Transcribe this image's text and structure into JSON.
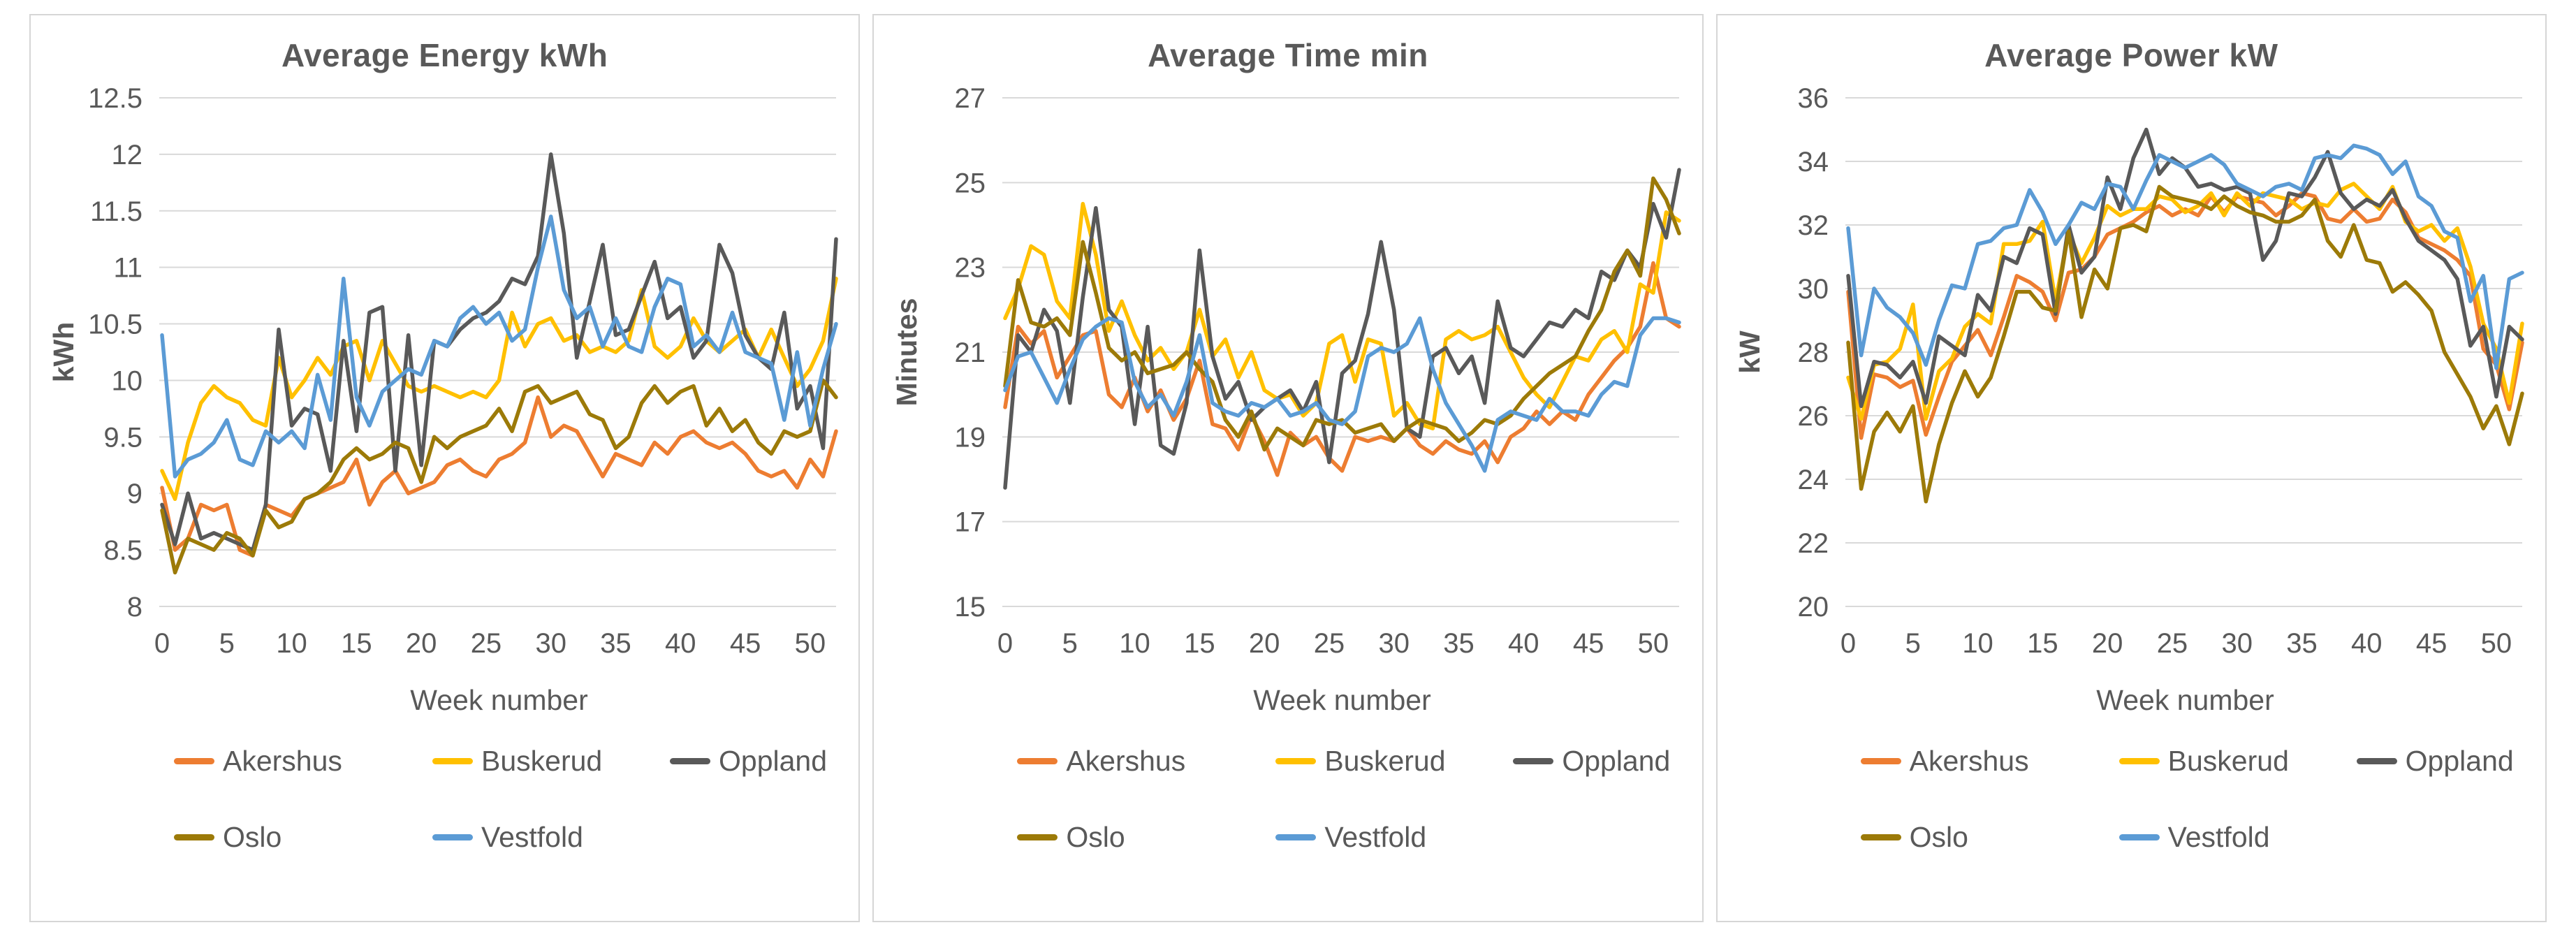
{
  "chart_data": [
    {
      "type": "line",
      "title": "Average Energy kWh",
      "ylabel": "kWh",
      "xlabel": "Week number",
      "ylim": [
        8,
        12.5
      ],
      "ystep": 0.5,
      "x_max": 52,
      "xticks": [
        0,
        5,
        10,
        15,
        20,
        25,
        30,
        35,
        40,
        45,
        50
      ],
      "grid": "horizontal",
      "legend_position": "bottom-left",
      "series": [
        {
          "name": "Akershus",
          "color": "#ED7D31",
          "values": [
            9.05,
            8.5,
            8.6,
            8.9,
            8.85,
            8.9,
            8.5,
            8.45,
            8.9,
            8.85,
            8.8,
            8.95,
            9.0,
            9.05,
            9.1,
            9.3,
            8.9,
            9.1,
            9.2,
            9.0,
            9.05,
            9.1,
            9.25,
            9.3,
            9.2,
            9.15,
            9.3,
            9.35,
            9.45,
            9.85,
            9.5,
            9.6,
            9.55,
            9.35,
            9.15,
            9.35,
            9.3,
            9.25,
            9.45,
            9.35,
            9.5,
            9.55,
            9.45,
            9.4,
            9.45,
            9.35,
            9.2,
            9.15,
            9.2,
            9.05,
            9.3,
            9.15,
            9.55
          ]
        },
        {
          "name": "Buskerud",
          "color": "#FFC000",
          "values": [
            9.2,
            8.95,
            9.45,
            9.8,
            9.95,
            9.85,
            9.8,
            9.65,
            9.6,
            10.2,
            9.85,
            10.0,
            10.2,
            10.05,
            10.3,
            10.35,
            10.0,
            10.35,
            10.15,
            9.95,
            9.9,
            9.95,
            9.9,
            9.85,
            9.9,
            9.85,
            10.0,
            10.6,
            10.3,
            10.5,
            10.55,
            10.35,
            10.4,
            10.25,
            10.3,
            10.25,
            10.35,
            10.8,
            10.3,
            10.2,
            10.3,
            10.55,
            10.35,
            10.25,
            10.35,
            10.45,
            10.2,
            10.45,
            10.2,
            9.95,
            10.1,
            10.35,
            10.9
          ]
        },
        {
          "name": "Oppland",
          "color": "#595959",
          "values": [
            8.9,
            8.55,
            9.0,
            8.6,
            8.65,
            8.6,
            8.55,
            8.5,
            8.9,
            10.45,
            9.6,
            9.75,
            9.7,
            9.2,
            10.35,
            9.55,
            10.6,
            10.65,
            9.2,
            10.4,
            9.25,
            10.35,
            10.3,
            10.45,
            10.55,
            10.6,
            10.7,
            10.9,
            10.85,
            11.1,
            12.0,
            11.3,
            10.2,
            10.7,
            11.2,
            10.4,
            10.45,
            10.75,
            11.05,
            10.55,
            10.65,
            10.2,
            10.35,
            11.2,
            10.95,
            10.4,
            10.2,
            10.1,
            10.6,
            9.75,
            9.95,
            9.4,
            11.25
          ]
        },
        {
          "name": "Oslo",
          "color": "#9C7A08",
          "values": [
            8.85,
            8.3,
            8.6,
            8.55,
            8.5,
            8.65,
            8.6,
            8.45,
            8.85,
            8.7,
            8.75,
            8.95,
            9.0,
            9.1,
            9.3,
            9.4,
            9.3,
            9.35,
            9.45,
            9.4,
            9.1,
            9.5,
            9.4,
            9.5,
            9.55,
            9.6,
            9.75,
            9.55,
            9.9,
            9.95,
            9.8,
            9.85,
            9.9,
            9.7,
            9.65,
            9.4,
            9.5,
            9.8,
            9.95,
            9.8,
            9.9,
            9.95,
            9.6,
            9.75,
            9.55,
            9.65,
            9.45,
            9.35,
            9.55,
            9.5,
            9.55,
            10.0,
            9.85
          ]
        },
        {
          "name": "Vestfold",
          "color": "#5B9BD5",
          "values": [
            10.4,
            9.15,
            9.3,
            9.35,
            9.45,
            9.65,
            9.3,
            9.25,
            9.55,
            9.45,
            9.55,
            9.4,
            10.05,
            9.65,
            10.9,
            9.85,
            9.6,
            9.9,
            10.0,
            10.1,
            10.05,
            10.35,
            10.3,
            10.55,
            10.65,
            10.5,
            10.6,
            10.35,
            10.45,
            11.0,
            11.45,
            10.8,
            10.55,
            10.65,
            10.3,
            10.55,
            10.3,
            10.25,
            10.65,
            10.9,
            10.85,
            10.3,
            10.4,
            10.25,
            10.6,
            10.25,
            10.2,
            10.15,
            9.65,
            10.25,
            9.6,
            10.1,
            10.5
          ]
        }
      ]
    },
    {
      "type": "line",
      "title": "Average Time min",
      "ylabel": "Minutes",
      "xlabel": "Week number",
      "ylim": [
        15,
        27
      ],
      "ystep": 2,
      "x_max": 52,
      "xticks": [
        0,
        5,
        10,
        15,
        20,
        25,
        30,
        35,
        40,
        45,
        50
      ],
      "grid": "horizontal",
      "legend_position": "bottom-left",
      "series": [
        {
          "name": "Akershus",
          "color": "#ED7D31",
          "values": [
            19.7,
            21.6,
            21.2,
            21.5,
            20.4,
            20.9,
            21.4,
            21.5,
            20.0,
            19.7,
            20.4,
            19.6,
            20.1,
            19.4,
            19.9,
            20.8,
            19.3,
            19.2,
            18.7,
            19.5,
            18.9,
            18.1,
            19.1,
            18.8,
            19.0,
            18.5,
            18.2,
            19.0,
            18.9,
            19.0,
            18.9,
            19.2,
            18.8,
            18.6,
            18.9,
            18.7,
            18.6,
            18.9,
            18.4,
            19.0,
            19.2,
            19.6,
            19.3,
            19.6,
            19.4,
            20.0,
            20.4,
            20.8,
            21.1,
            21.6,
            23.1,
            21.8,
            21.6
          ]
        },
        {
          "name": "Buskerud",
          "color": "#FFC000",
          "values": [
            21.8,
            22.5,
            23.5,
            23.3,
            22.2,
            21.8,
            24.5,
            23.3,
            21.5,
            22.2,
            21.4,
            20.8,
            21.1,
            20.6,
            21.0,
            22.0,
            20.9,
            21.3,
            20.4,
            21.0,
            20.1,
            19.9,
            20.0,
            19.5,
            19.8,
            21.2,
            21.4,
            20.3,
            21.3,
            21.2,
            19.5,
            19.8,
            19.3,
            19.2,
            21.3,
            21.5,
            21.3,
            21.4,
            21.6,
            21.0,
            20.4,
            20.0,
            19.7,
            20.3,
            20.9,
            20.8,
            21.3,
            21.5,
            21.0,
            22.6,
            22.4,
            24.3,
            24.1
          ]
        },
        {
          "name": "Oppland",
          "color": "#595959",
          "values": [
            17.8,
            21.4,
            21.0,
            22.0,
            21.5,
            19.8,
            22.3,
            24.4,
            22.0,
            21.6,
            19.3,
            21.6,
            18.8,
            18.6,
            19.8,
            23.4,
            20.9,
            19.9,
            20.3,
            19.4,
            19.7,
            19.9,
            20.1,
            19.6,
            20.3,
            18.4,
            20.5,
            20.8,
            21.9,
            23.6,
            22.0,
            19.2,
            19.0,
            20.9,
            21.1,
            20.5,
            20.9,
            19.8,
            22.2,
            21.1,
            20.9,
            21.3,
            21.7,
            21.6,
            22.0,
            21.8,
            22.9,
            22.7,
            23.4,
            23.0,
            24.5,
            23.7,
            25.3
          ]
        },
        {
          "name": "Oslo",
          "color": "#9C7A08",
          "values": [
            20.2,
            22.7,
            21.7,
            21.6,
            21.8,
            21.4,
            23.6,
            22.4,
            21.1,
            20.8,
            21.0,
            20.5,
            20.6,
            20.7,
            21.0,
            20.6,
            20.3,
            19.4,
            19.0,
            19.6,
            18.7,
            19.2,
            19.0,
            18.8,
            19.4,
            19.3,
            19.4,
            19.1,
            19.2,
            19.3,
            18.9,
            19.2,
            19.4,
            19.3,
            19.2,
            18.9,
            19.1,
            19.4,
            19.3,
            19.5,
            19.9,
            20.2,
            20.5,
            20.7,
            20.9,
            21.5,
            22.0,
            22.9,
            23.4,
            22.8,
            25.1,
            24.6,
            23.8
          ]
        },
        {
          "name": "Vestfold",
          "color": "#5B9BD5",
          "values": [
            20.1,
            20.9,
            21.0,
            20.4,
            19.8,
            20.6,
            21.3,
            21.6,
            21.8,
            21.7,
            20.3,
            19.7,
            20.0,
            19.5,
            20.3,
            21.4,
            19.8,
            19.6,
            19.5,
            19.8,
            19.7,
            19.9,
            19.5,
            19.6,
            19.8,
            19.4,
            19.3,
            19.6,
            20.9,
            21.1,
            21.0,
            21.2,
            21.8,
            20.6,
            19.8,
            19.3,
            18.8,
            18.2,
            19.4,
            19.6,
            19.5,
            19.4,
            19.9,
            19.6,
            19.6,
            19.5,
            20.0,
            20.3,
            20.2,
            21.4,
            21.8,
            21.8,
            21.7
          ]
        }
      ]
    },
    {
      "type": "line",
      "title": "Average Power kW",
      "ylabel": "kW",
      "xlabel": "Week number",
      "ylim": [
        20,
        36
      ],
      "ystep": 2,
      "x_max": 52,
      "xticks": [
        0,
        5,
        10,
        15,
        20,
        25,
        30,
        35,
        40,
        45,
        50
      ],
      "grid": "horizontal",
      "legend_position": "bottom-left",
      "series": [
        {
          "name": "Akershus",
          "color": "#ED7D31",
          "values": [
            29.9,
            25.3,
            27.3,
            27.2,
            26.9,
            27.1,
            25.4,
            26.6,
            27.7,
            28.2,
            28.7,
            27.9,
            29.1,
            30.4,
            30.2,
            29.9,
            29.0,
            30.5,
            30.6,
            31.0,
            31.7,
            31.9,
            32.1,
            32.4,
            32.6,
            32.3,
            32.5,
            32.3,
            32.9,
            32.4,
            32.9,
            32.8,
            32.7,
            32.3,
            32.6,
            33.0,
            32.9,
            32.2,
            32.1,
            32.5,
            32.1,
            32.2,
            32.8,
            32.4,
            31.6,
            31.4,
            31.2,
            30.9,
            30.4,
            28.1,
            27.6,
            26.2,
            28.3
          ]
        },
        {
          "name": "Buskerud",
          "color": "#FFC000",
          "values": [
            27.2,
            25.9,
            27.6,
            27.7,
            28.1,
            29.5,
            25.9,
            27.4,
            27.8,
            28.8,
            29.2,
            28.9,
            31.4,
            31.4,
            31.5,
            32.1,
            29.6,
            31.8,
            30.8,
            31.6,
            32.6,
            32.3,
            32.5,
            32.5,
            32.9,
            32.8,
            32.4,
            32.6,
            33.0,
            32.3,
            33.0,
            32.6,
            33.0,
            32.9,
            32.8,
            32.5,
            32.7,
            32.6,
            33.1,
            33.3,
            32.9,
            32.5,
            33.2,
            32.1,
            31.8,
            32.0,
            31.5,
            31.9,
            30.7,
            28.9,
            28.1,
            26.4,
            28.9
          ]
        },
        {
          "name": "Oppland",
          "color": "#595959",
          "values": [
            30.4,
            26.3,
            27.7,
            27.6,
            27.2,
            27.7,
            26.4,
            28.5,
            28.2,
            27.9,
            29.8,
            29.3,
            31.0,
            30.8,
            31.9,
            31.7,
            29.2,
            32.0,
            30.5,
            31.0,
            33.5,
            32.5,
            34.1,
            35.0,
            33.6,
            34.1,
            33.8,
            33.2,
            33.3,
            33.1,
            33.2,
            33.0,
            30.9,
            31.5,
            33.0,
            32.9,
            33.5,
            34.3,
            33.0,
            32.5,
            32.8,
            32.6,
            33.1,
            32.2,
            31.5,
            31.2,
            30.9,
            30.3,
            28.2,
            28.8,
            26.6,
            28.8,
            28.4
          ]
        },
        {
          "name": "Oslo",
          "color": "#9C7A08",
          "values": [
            28.3,
            23.7,
            25.5,
            26.1,
            25.5,
            26.3,
            23.3,
            25.1,
            26.4,
            27.4,
            26.6,
            27.2,
            28.5,
            29.9,
            29.9,
            29.4,
            29.3,
            31.8,
            29.1,
            30.6,
            30.0,
            31.9,
            32.0,
            31.8,
            33.2,
            32.9,
            32.8,
            32.7,
            32.5,
            32.9,
            32.6,
            32.4,
            32.3,
            32.1,
            32.1,
            32.3,
            32.8,
            31.5,
            31.0,
            32.0,
            30.9,
            30.8,
            29.9,
            30.2,
            29.8,
            29.3,
            28.0,
            27.3,
            26.6,
            25.6,
            26.3,
            25.1,
            26.7
          ]
        },
        {
          "name": "Vestfold",
          "color": "#5B9BD5",
          "values": [
            31.9,
            27.9,
            30.0,
            29.4,
            29.1,
            28.6,
            27.6,
            29.0,
            30.1,
            30.0,
            31.4,
            31.5,
            31.9,
            32.0,
            33.1,
            32.4,
            31.4,
            32.0,
            32.7,
            32.5,
            33.3,
            33.2,
            32.5,
            33.4,
            34.2,
            34.0,
            33.8,
            34.0,
            34.2,
            33.9,
            33.3,
            33.1,
            32.9,
            33.2,
            33.3,
            33.1,
            34.1,
            34.2,
            34.1,
            34.5,
            34.4,
            34.2,
            33.6,
            34.0,
            32.9,
            32.6,
            31.8,
            31.6,
            29.6,
            30.4,
            27.5,
            30.3,
            30.5
          ]
        }
      ]
    }
  ],
  "styles": {
    "text_color": "#595959",
    "gridline_color": "#D9D9D9",
    "panel_border_color": "#D6D6D6",
    "background": "#FFFFFF"
  }
}
